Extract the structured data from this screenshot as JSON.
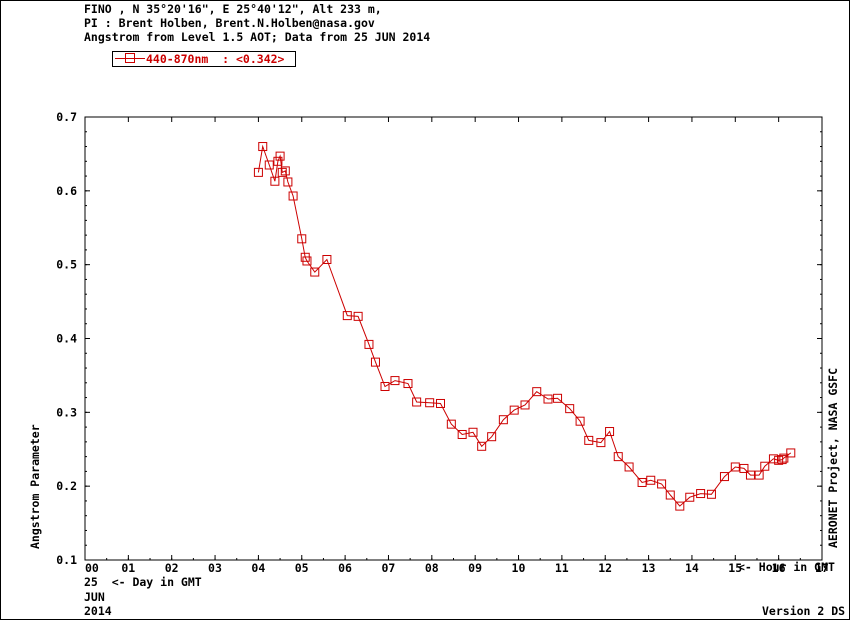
{
  "header": {
    "line1": "FINO , N 35°20'16\", E 25°40'12\", Alt 233 m,",
    "line2": "PI : Brent Holben, Brent.N.Holben@nasa.gov",
    "line3": "Angstrom from Level 1.5 AOT; Data from 25 JUN 2014"
  },
  "legend": {
    "label": "440-870nm  : <0.342>"
  },
  "footer": {
    "hour_label": "<- Hour in GMT",
    "day_label": "25  <- Day in GMT",
    "month": "JUN",
    "year": "2014",
    "version": "Version 2 DS",
    "credit": "AERONET Project, NASA GSFC"
  },
  "colors": {
    "series": "#cc0000",
    "axis": "#000000"
  },
  "chart_data": {
    "type": "line",
    "title": "",
    "xlabel": "",
    "ylabel": "Angstrom Parameter",
    "xlim": [
      0,
      17
    ],
    "ylim": [
      0.1,
      0.7
    ],
    "x_ticks": [
      "00",
      "01",
      "02",
      "03",
      "04",
      "05",
      "06",
      "07",
      "08",
      "09",
      "10",
      "11",
      "12",
      "13",
      "14",
      "15",
      "16",
      "17"
    ],
    "y_ticks": [
      "0.1",
      "0.2",
      "0.3",
      "0.4",
      "0.5",
      "0.6",
      "0.7"
    ],
    "grid": false,
    "legend_position": "top-left",
    "series": [
      {
        "name": "440-870nm",
        "marker": "square",
        "x": [
          4.0,
          4.1,
          4.25,
          4.38,
          4.45,
          4.5,
          4.55,
          4.62,
          4.68,
          4.8,
          5.0,
          5.08,
          5.12,
          5.3,
          5.58,
          6.05,
          6.3,
          6.55,
          6.7,
          6.92,
          7.15,
          7.45,
          7.65,
          7.95,
          8.2,
          8.45,
          8.7,
          8.95,
          9.15,
          9.38,
          9.65,
          9.9,
          10.15,
          10.42,
          10.68,
          10.9,
          11.18,
          11.42,
          11.62,
          11.9,
          12.1,
          12.3,
          12.55,
          12.85,
          13.05,
          13.3,
          13.5,
          13.72,
          13.95,
          14.2,
          14.45,
          14.75,
          15.0,
          15.2,
          15.35,
          15.55,
          15.68,
          15.88,
          16.0,
          16.08,
          16.12,
          16.28
        ],
        "y": [
          0.625,
          0.66,
          0.635,
          0.613,
          0.64,
          0.647,
          0.625,
          0.627,
          0.612,
          0.593,
          0.535,
          0.51,
          0.505,
          0.49,
          0.507,
          0.431,
          0.43,
          0.392,
          0.368,
          0.335,
          0.343,
          0.339,
          0.314,
          0.313,
          0.312,
          0.284,
          0.27,
          0.273,
          0.254,
          0.267,
          0.29,
          0.303,
          0.31,
          0.328,
          0.318,
          0.319,
          0.305,
          0.288,
          0.262,
          0.259,
          0.274,
          0.24,
          0.226,
          0.205,
          0.208,
          0.203,
          0.188,
          0.173,
          0.185,
          0.19,
          0.189,
          0.213,
          0.226,
          0.224,
          0.215,
          0.215,
          0.227,
          0.237,
          0.235,
          0.236,
          0.238,
          0.245
        ]
      }
    ]
  }
}
